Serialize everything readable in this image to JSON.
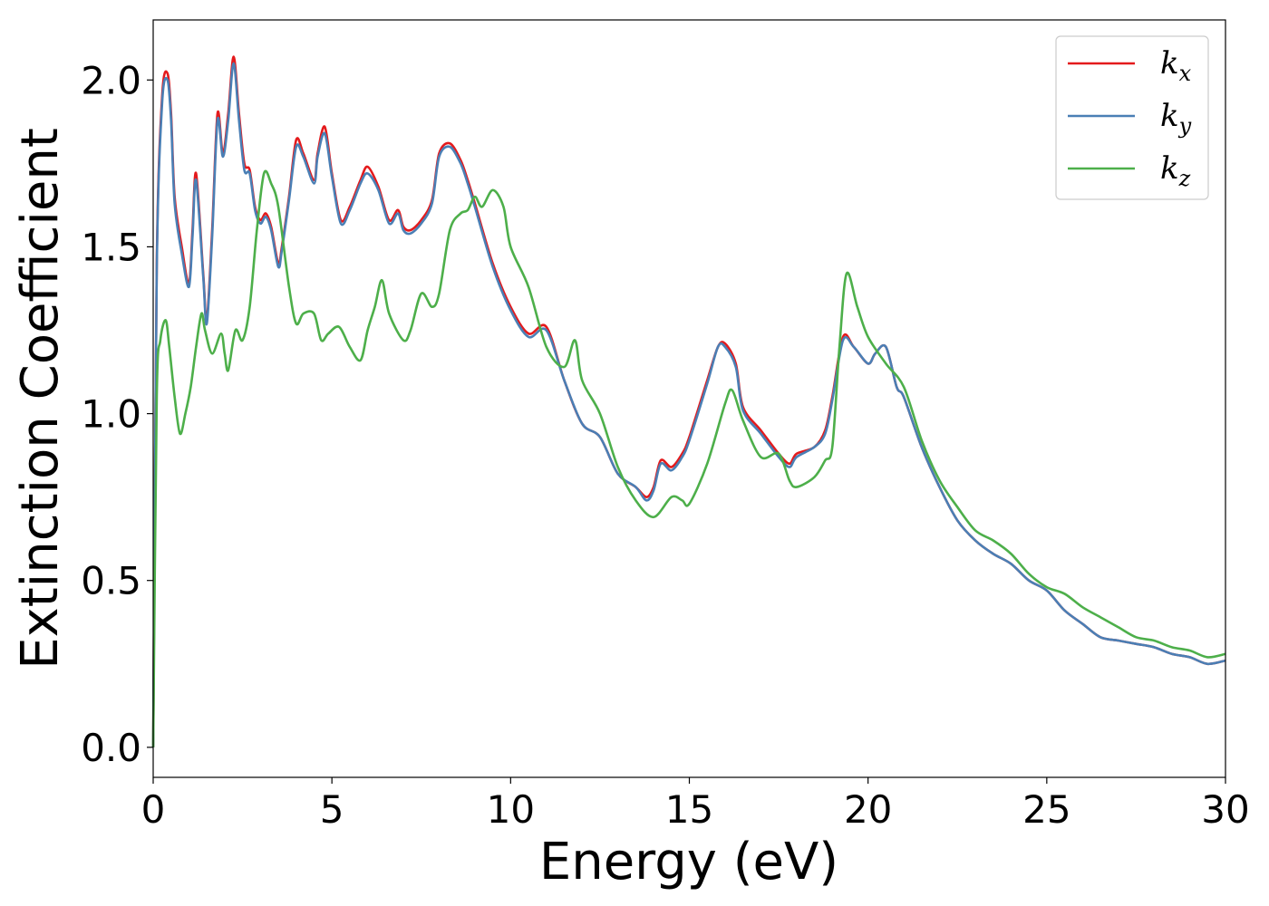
{
  "chart_data": {
    "type": "line",
    "title": "",
    "xlabel": "Energy (eV)",
    "ylabel": "Extinction Coefficient",
    "xlim": [
      0,
      30
    ],
    "ylim": [
      -0.09,
      2.18
    ],
    "xticks": [
      0,
      5,
      10,
      15,
      20,
      25,
      30
    ],
    "xtick_labels": [
      "0",
      "5",
      "10",
      "15",
      "20",
      "25",
      "30"
    ],
    "yticks": [
      0.0,
      0.5,
      1.0,
      1.5,
      2.0
    ],
    "ytick_labels": [
      "0.0",
      "0.5",
      "1.0",
      "1.5",
      "2.0"
    ],
    "grid": false,
    "legend_position": "top-right",
    "series": [
      {
        "name": "k_x",
        "label_main": "k",
        "label_sub": "x",
        "color": "#e41a1c",
        "x": [
          0,
          0.1,
          0.25,
          0.4,
          0.5,
          0.6,
          0.8,
          1.0,
          1.1,
          1.2,
          1.4,
          1.5,
          1.65,
          1.8,
          1.95,
          2.1,
          2.25,
          2.4,
          2.55,
          2.7,
          2.85,
          3.0,
          3.15,
          3.3,
          3.5,
          3.6,
          3.8,
          4.0,
          4.2,
          4.5,
          4.6,
          4.8,
          5.0,
          5.25,
          5.5,
          5.8,
          6.0,
          6.3,
          6.6,
          6.85,
          7.0,
          7.2,
          7.5,
          7.8,
          8.0,
          8.3,
          8.6,
          8.8,
          9.0,
          9.5,
          10.0,
          10.5,
          11.0,
          11.5,
          12.0,
          12.5,
          13.0,
          13.5,
          13.8,
          14.0,
          14.2,
          14.5,
          14.8,
          15.0,
          15.5,
          15.8,
          16.0,
          16.3,
          16.5,
          17.0,
          17.5,
          17.8,
          18.0,
          18.5,
          18.8,
          19.0,
          19.3,
          19.6,
          20.0,
          20.2,
          20.5,
          20.8,
          21.0,
          21.5,
          22.0,
          22.5,
          23.0,
          23.5,
          24.0,
          24.5,
          25.0,
          25.5,
          26.0,
          26.5,
          27.0,
          27.5,
          28.0,
          28.5,
          29.0,
          29.5,
          30.0
        ],
        "y": [
          0.0,
          1.45,
          1.95,
          2.02,
          1.9,
          1.65,
          1.5,
          1.39,
          1.55,
          1.72,
          1.42,
          1.28,
          1.55,
          1.9,
          1.78,
          1.9,
          2.07,
          1.9,
          1.75,
          1.73,
          1.62,
          1.58,
          1.6,
          1.56,
          1.45,
          1.5,
          1.65,
          1.82,
          1.78,
          1.7,
          1.78,
          1.86,
          1.72,
          1.58,
          1.62,
          1.7,
          1.74,
          1.68,
          1.58,
          1.61,
          1.56,
          1.55,
          1.58,
          1.64,
          1.78,
          1.81,
          1.76,
          1.7,
          1.63,
          1.45,
          1.32,
          1.24,
          1.26,
          1.1,
          0.97,
          0.93,
          0.82,
          0.78,
          0.75,
          0.78,
          0.86,
          0.84,
          0.88,
          0.93,
          1.1,
          1.2,
          1.21,
          1.15,
          1.02,
          0.95,
          0.88,
          0.85,
          0.88,
          0.9,
          0.95,
          1.05,
          1.23,
          1.2,
          1.15,
          1.18,
          1.2,
          1.08,
          1.05,
          0.9,
          0.78,
          0.68,
          0.62,
          0.58,
          0.55,
          0.5,
          0.47,
          0.41,
          0.37,
          0.33,
          0.32,
          0.31,
          0.3,
          0.28,
          0.27,
          0.25,
          0.26
        ]
      },
      {
        "name": "k_y",
        "label_main": "k",
        "label_sub": "y",
        "color": "#4a7fb5",
        "x": [
          0,
          0.1,
          0.25,
          0.4,
          0.5,
          0.6,
          0.8,
          1.0,
          1.1,
          1.2,
          1.4,
          1.5,
          1.65,
          1.8,
          1.95,
          2.1,
          2.25,
          2.4,
          2.55,
          2.7,
          2.85,
          3.0,
          3.15,
          3.3,
          3.5,
          3.6,
          3.8,
          4.0,
          4.2,
          4.5,
          4.6,
          4.8,
          5.0,
          5.25,
          5.5,
          5.8,
          6.0,
          6.3,
          6.6,
          6.85,
          7.0,
          7.2,
          7.5,
          7.8,
          8.0,
          8.3,
          8.6,
          8.8,
          9.0,
          9.5,
          10.0,
          10.5,
          11.0,
          11.5,
          12.0,
          12.5,
          13.0,
          13.5,
          13.8,
          14.0,
          14.2,
          14.5,
          14.8,
          15.0,
          15.5,
          15.8,
          16.0,
          16.3,
          16.5,
          17.0,
          17.5,
          17.8,
          18.0,
          18.5,
          18.8,
          19.0,
          19.3,
          19.6,
          20.0,
          20.2,
          20.5,
          20.8,
          21.0,
          21.5,
          22.0,
          22.5,
          23.0,
          23.5,
          24.0,
          24.5,
          25.0,
          25.5,
          26.0,
          26.5,
          27.0,
          27.5,
          28.0,
          28.5,
          29.0,
          29.5,
          30.0
        ],
        "y": [
          0.0,
          1.43,
          1.93,
          2.0,
          1.88,
          1.63,
          1.48,
          1.38,
          1.53,
          1.7,
          1.41,
          1.27,
          1.53,
          1.88,
          1.77,
          1.88,
          2.05,
          1.88,
          1.73,
          1.72,
          1.61,
          1.57,
          1.59,
          1.55,
          1.44,
          1.49,
          1.64,
          1.8,
          1.77,
          1.69,
          1.77,
          1.84,
          1.71,
          1.57,
          1.61,
          1.69,
          1.72,
          1.67,
          1.57,
          1.6,
          1.55,
          1.54,
          1.57,
          1.63,
          1.77,
          1.8,
          1.75,
          1.69,
          1.62,
          1.44,
          1.31,
          1.23,
          1.25,
          1.1,
          0.97,
          0.93,
          0.82,
          0.78,
          0.74,
          0.77,
          0.85,
          0.83,
          0.87,
          0.92,
          1.09,
          1.2,
          1.2,
          1.14,
          1.01,
          0.94,
          0.87,
          0.84,
          0.87,
          0.9,
          0.94,
          1.04,
          1.22,
          1.2,
          1.15,
          1.18,
          1.2,
          1.08,
          1.05,
          0.9,
          0.78,
          0.68,
          0.62,
          0.58,
          0.55,
          0.5,
          0.47,
          0.41,
          0.37,
          0.33,
          0.32,
          0.31,
          0.3,
          0.28,
          0.27,
          0.25,
          0.26
        ]
      },
      {
        "name": "k_z",
        "label_main": "k",
        "label_sub": "z",
        "color": "#4daf4a",
        "x": [
          0,
          0.1,
          0.2,
          0.35,
          0.45,
          0.6,
          0.75,
          0.9,
          1.05,
          1.2,
          1.35,
          1.45,
          1.65,
          1.9,
          2.0,
          2.1,
          2.3,
          2.5,
          2.7,
          2.9,
          3.1,
          3.3,
          3.5,
          3.8,
          4.0,
          4.2,
          4.5,
          4.7,
          4.9,
          5.2,
          5.5,
          5.8,
          6.0,
          6.2,
          6.4,
          6.6,
          7.0,
          7.2,
          7.5,
          7.8,
          8.0,
          8.3,
          8.6,
          8.8,
          9.0,
          9.2,
          9.5,
          9.8,
          10.0,
          10.5,
          11.0,
          11.5,
          11.8,
          12.0,
          12.5,
          13.0,
          13.5,
          14.0,
          14.5,
          14.8,
          15.0,
          15.5,
          16.0,
          16.2,
          16.5,
          17.0,
          17.5,
          17.8,
          18.0,
          18.5,
          18.8,
          19.0,
          19.2,
          19.4,
          19.7,
          20.0,
          20.5,
          21.0,
          21.5,
          22.0,
          22.5,
          23.0,
          23.5,
          24.0,
          24.5,
          25.0,
          25.5,
          26.0,
          26.5,
          27.0,
          27.5,
          28.0,
          28.5,
          29.0,
          29.5,
          30.0
        ],
        "y": [
          0.0,
          1.05,
          1.22,
          1.28,
          1.2,
          1.05,
          0.94,
          1.0,
          1.08,
          1.2,
          1.3,
          1.25,
          1.18,
          1.24,
          1.18,
          1.13,
          1.25,
          1.22,
          1.32,
          1.55,
          1.72,
          1.69,
          1.62,
          1.38,
          1.27,
          1.3,
          1.3,
          1.22,
          1.24,
          1.26,
          1.2,
          1.16,
          1.25,
          1.32,
          1.4,
          1.3,
          1.22,
          1.25,
          1.36,
          1.32,
          1.36,
          1.55,
          1.6,
          1.61,
          1.65,
          1.62,
          1.67,
          1.62,
          1.5,
          1.38,
          1.2,
          1.14,
          1.22,
          1.1,
          1.0,
          0.84,
          0.74,
          0.69,
          0.75,
          0.74,
          0.73,
          0.85,
          1.03,
          1.07,
          0.98,
          0.87,
          0.88,
          0.8,
          0.78,
          0.81,
          0.86,
          0.9,
          1.2,
          1.42,
          1.32,
          1.23,
          1.15,
          1.08,
          0.92,
          0.8,
          0.72,
          0.65,
          0.62,
          0.58,
          0.52,
          0.48,
          0.46,
          0.42,
          0.39,
          0.36,
          0.33,
          0.32,
          0.3,
          0.29,
          0.27,
          0.28
        ]
      }
    ]
  }
}
